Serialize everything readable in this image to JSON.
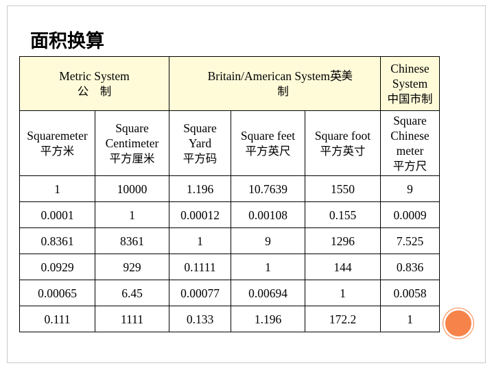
{
  "title": "面积换算",
  "systems": {
    "metric_en": "Metric System",
    "metric_zh": "公　制",
    "british_en": "Britain/American System英",
    "british_right": "美",
    "british_zh": "制",
    "chinese_en_1": "Chinese",
    "chinese_en_2": "System",
    "chinese_zh": "中国市制"
  },
  "units": [
    {
      "en": [
        "Squaremeter"
      ],
      "zh": "平方米"
    },
    {
      "en": [
        "Square",
        "Centimeter"
      ],
      "zh": "平方厘米"
    },
    {
      "en": [
        "Square",
        "Yard"
      ],
      "zh": "平方码"
    },
    {
      "en": [
        "Square feet"
      ],
      "zh": "平方英尺"
    },
    {
      "en": [
        "Square foot"
      ],
      "zh": "平方英寸"
    },
    {
      "en": [
        "Square",
        "Chinese",
        "meter"
      ],
      "zh": "平方尺"
    }
  ],
  "rows": [
    [
      "1",
      "10000",
      "1.196",
      "10.7639",
      "1550",
      "9"
    ],
    [
      "0.0001",
      "1",
      "0.00012",
      "0.00108",
      "0.155",
      "0.0009"
    ],
    [
      "0.8361",
      "8361",
      "1",
      "9",
      "1296",
      "7.525"
    ],
    [
      "0.0929",
      "929",
      "0.1111",
      "1",
      "144",
      "0.836"
    ],
    [
      "0.00065",
      "6.45",
      "0.00077",
      "0.00694",
      "1",
      "0.0058"
    ],
    [
      "0.111",
      "1111",
      "0.133",
      "1.196",
      "172.2",
      "1"
    ]
  ],
  "colors": {
    "header_bg": "#fffbd9",
    "accent": "#f6844a",
    "frame": "#c9c9c9"
  }
}
